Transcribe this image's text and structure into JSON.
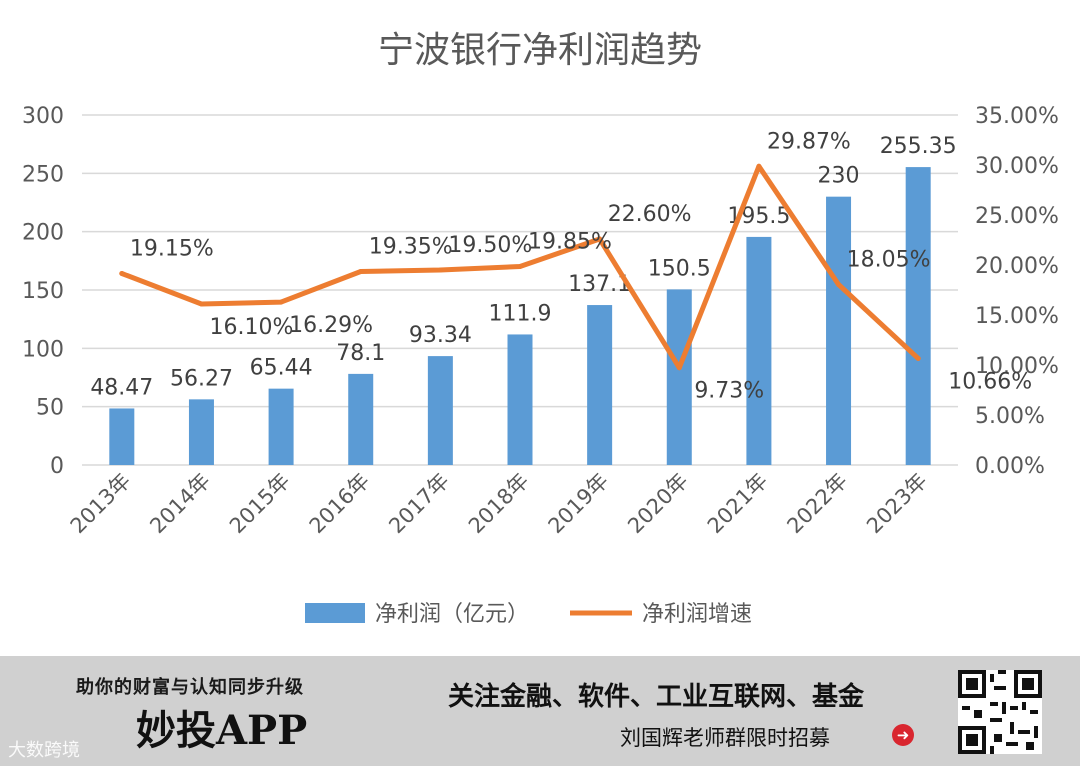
{
  "chart_data": {
    "type": "bar+line",
    "title": "宁波银行净利润趋势",
    "categories": [
      "2013年",
      "2014年",
      "2015年",
      "2016年",
      "2017年",
      "2018年",
      "2019年",
      "2020年",
      "2021年",
      "2022年",
      "2023年"
    ],
    "series": [
      {
        "name": "净利润（亿元）",
        "type": "bar",
        "axis": "left",
        "color": "#5b9bd5",
        "values": [
          48.47,
          56.27,
          65.44,
          78.1,
          93.34,
          111.9,
          137.1,
          150.5,
          195.5,
          230,
          255.35
        ],
        "labels": [
          "48.47",
          "56.27",
          "65.44",
          "78.1",
          "93.34",
          "111.9",
          "137.1",
          "150.5",
          "195.5",
          "230",
          "255.35"
        ]
      },
      {
        "name": "净利润增速",
        "type": "line",
        "axis": "right",
        "color": "#ed7d31",
        "values": [
          19.15,
          16.1,
          16.29,
          19.35,
          19.5,
          19.85,
          22.6,
          9.73,
          29.87,
          18.05,
          10.66
        ],
        "labels": [
          "19.15%",
          "16.10%",
          "16.29%",
          "19.35%",
          "19.50%",
          "19.85%",
          "22.60%",
          "9.73%",
          "29.87%",
          "18.05%",
          "10.66%"
        ]
      }
    ],
    "y_left": {
      "min": 0,
      "max": 300,
      "ticks": [
        "0",
        "50",
        "100",
        "150",
        "200",
        "250",
        "300"
      ]
    },
    "y_right": {
      "min": 0,
      "max": 35,
      "ticks": [
        "0.00%",
        "5.00%",
        "10.00%",
        "15.00%",
        "20.00%",
        "25.00%",
        "30.00%",
        "35.00%"
      ]
    },
    "grid": true,
    "legend": "bottom"
  },
  "banner": {
    "slogan": "助你的财富与认知同步升级",
    "app_name": "妙投APP",
    "topics": "关注金融、软件、工业互联网、基金",
    "recruit": "刘国辉老师群限时招募",
    "arrow": "➜",
    "watermark": "大数跨境"
  },
  "colors": {
    "bar": "#5b9bd5",
    "line": "#ed7d31",
    "grid": "#d9d9d9",
    "text": "#595959",
    "banner_bg": "#d0d0d0"
  }
}
